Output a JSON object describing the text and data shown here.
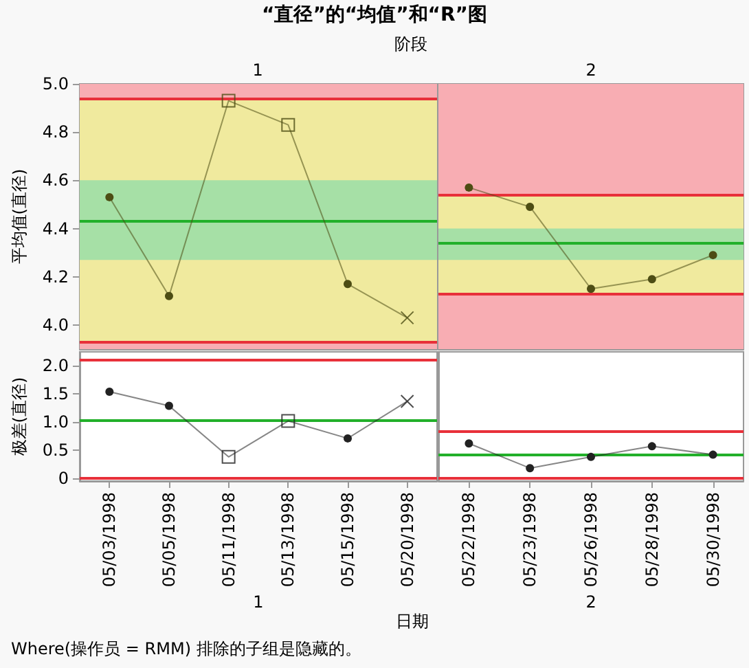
{
  "chart_data": [
    {
      "type": "line",
      "title": "“直径”的“均值”和“R”图",
      "subtitle": "阶段",
      "ylabel": "平均值(直径)",
      "annotations": [
        "1"
      ],
      "categories": [
        "05/03/1998",
        "05/05/1998",
        "05/11/1998",
        "05/13/1998",
        "05/15/1998",
        "05/20/1998"
      ],
      "series": [
        {
          "color": "#4d4d14",
          "marker": "circle",
          "values": [
            4.53,
            4.12,
            4.93,
            4.83,
            4.17,
            4.03
          ]
        },
        {
          "type": "scatter",
          "color": "#4d4d14",
          "marker": "square",
          "x": [
            "05/11/1998",
            "05/13/1998"
          ],
          "values": [
            4.93,
            4.83
          ]
        },
        {
          "type": "scatter",
          "color": "#4d4d14",
          "marker": "cross",
          "x": [
            "05/20/1998"
          ],
          "values": [
            4.03
          ]
        }
      ],
      "ylim": [
        3.9,
        5.0
      ],
      "yticks": [
        {
          "value": 4,
          "label": "4.0"
        },
        4.2,
        4.4,
        4.6,
        4.8,
        {
          "value": 5,
          "label": "5.0"
        }
      ],
      "bands": [
        {
          "axis": "y",
          "from": 4.94,
          "to": 5.0,
          "color": "#f8adb3"
        },
        {
          "axis": "y",
          "from": 3.9,
          "to": 3.93,
          "color": "#f8adb3"
        },
        {
          "axis": "y",
          "from": 3.93,
          "to": 4.94,
          "color": "#f0ea9e"
        },
        {
          "axis": "y",
          "from": 4.27,
          "to": 4.6,
          "color": "#a6e0a6"
        }
      ],
      "ref_lines": [
        {
          "axis": "y",
          "value": 4.94,
          "color": "#e8303a"
        },
        {
          "axis": "y",
          "value": 4.43,
          "color": "#22b02a"
        },
        {
          "axis": "y",
          "value": 3.93,
          "color": "#e8303a"
        }
      ],
      "tick_labels": "y"
    },
    {
      "type": "line",
      "annotations": [
        "2"
      ],
      "categories": [
        "05/22/1998",
        "05/23/1998",
        "05/26/1998",
        "05/28/1998",
        "05/30/1998"
      ],
      "series": [
        {
          "color": "#4d4d14",
          "marker": "circle",
          "values": [
            4.57,
            4.49,
            4.15,
            4.19,
            4.29
          ]
        }
      ],
      "ylim": [
        3.9,
        5.0
      ],
      "yticks": [
        4,
        4.2,
        4.4,
        4.6,
        4.8,
        5
      ],
      "bands": [
        {
          "axis": "y",
          "from": 4.54,
          "to": 5.0,
          "color": "#f8adb3"
        },
        {
          "axis": "y",
          "from": 3.9,
          "to": 4.13,
          "color": "#f8adb3"
        },
        {
          "axis": "y",
          "from": 4.13,
          "to": 4.54,
          "color": "#f0ea9e"
        },
        {
          "axis": "y",
          "from": 4.27,
          "to": 4.4,
          "color": "#a6e0a6"
        }
      ],
      "ref_lines": [
        {
          "axis": "y",
          "value": 4.54,
          "color": "#e8303a"
        },
        {
          "axis": "y",
          "value": 4.34,
          "color": "#22b02a"
        },
        {
          "axis": "y",
          "value": 4.13,
          "color": "#e8303a"
        }
      ],
      "tick_labels": false
    },
    {
      "type": "line",
      "ylabel": "极差(直径)",
      "xlabel": "1",
      "annotations": [
        "日期",
        "Where(操作员 = RMM) 排除的子组是隐藏的。"
      ],
      "categories": [
        "05/03/1998",
        "05/05/1998",
        "05/11/1998",
        "05/13/1998",
        "05/15/1998",
        "05/20/1998"
      ],
      "series": [
        {
          "color": "#222222",
          "marker": "circle",
          "values": [
            1.54,
            1.29,
            0.38,
            1.02,
            0.71,
            1.37
          ]
        },
        {
          "type": "scatter",
          "color": "#222222",
          "marker": "square",
          "x": [
            "05/11/1998",
            "05/13/1998"
          ],
          "values": [
            0.38,
            1.02
          ]
        },
        {
          "type": "scatter",
          "color": "#222222",
          "marker": "cross",
          "x": [
            "05/20/1998"
          ],
          "values": [
            1.37
          ]
        }
      ],
      "ylim": [
        -0.05,
        2.25
      ],
      "yticks": [
        0,
        0.5,
        {
          "value": 1,
          "label": "1.0"
        },
        1.5,
        {
          "value": 2,
          "label": "2.0"
        }
      ],
      "ref_lines": [
        {
          "axis": "y",
          "value": 2.1,
          "color": "#e8303a"
        },
        {
          "axis": "y",
          "value": 1.04,
          "color": "#22b02a"
        },
        {
          "axis": "y",
          "value": 0,
          "color": "#e8303a"
        }
      ]
    },
    {
      "type": "line",
      "xlabel": "2",
      "categories": [
        "05/22/1998",
        "05/23/1998",
        "05/26/1998",
        "05/28/1998",
        "05/30/1998"
      ],
      "series": [
        {
          "color": "#222222",
          "marker": "circle",
          "values": [
            0.62,
            0.18,
            0.38,
            0.57,
            0.42
          ]
        }
      ],
      "ylim": [
        -0.05,
        2.25
      ],
      "yticks": [
        0,
        0.5,
        1,
        1.5,
        2
      ],
      "ref_lines": [
        {
          "axis": "y",
          "value": 0.83,
          "color": "#e8303a"
        },
        {
          "axis": "y",
          "value": 0.43,
          "color": "#22b02a"
        },
        {
          "axis": "y",
          "value": 0,
          "color": "#e8303a"
        }
      ],
      "tick_labels": "x"
    }
  ]
}
